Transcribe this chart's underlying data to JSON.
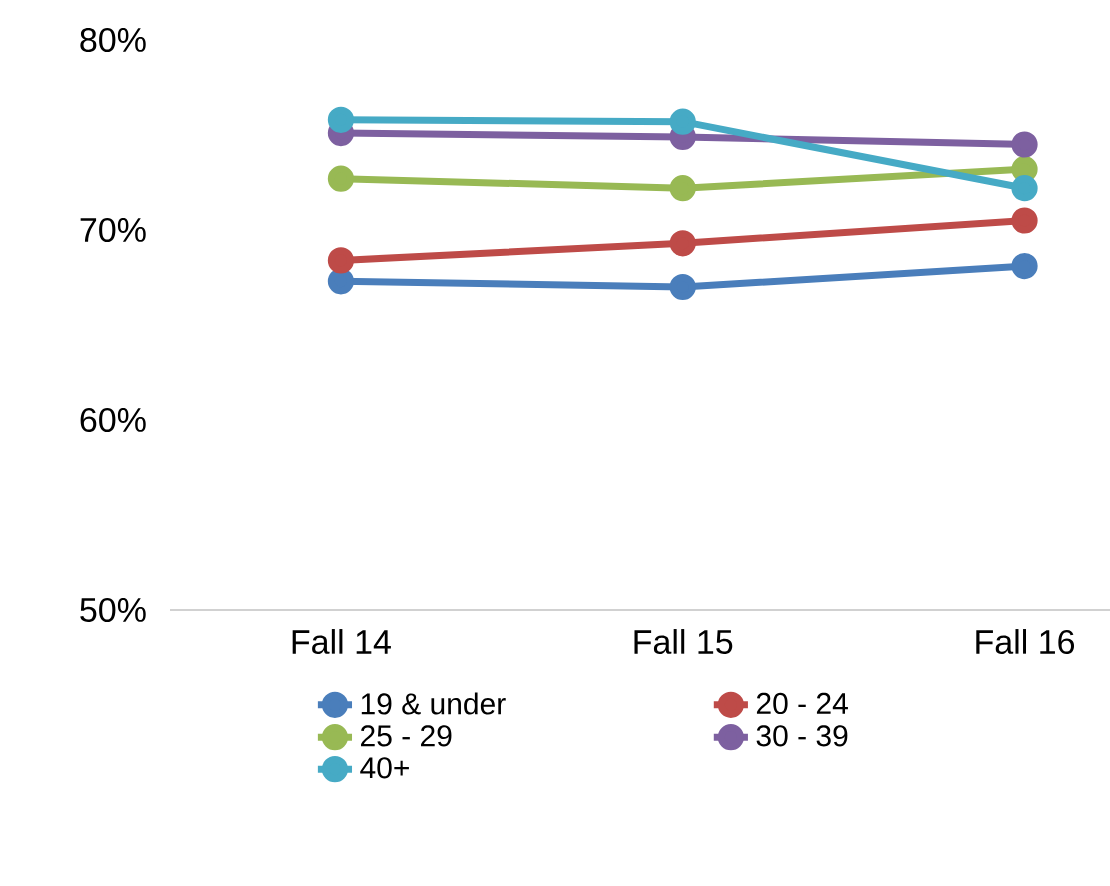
{
  "chart_data": {
    "type": "line",
    "categories": [
      "Fall 14",
      "Fall 15",
      "Fall 16"
    ],
    "series": [
      {
        "name": "19 & under",
        "color": "#4a7ebb",
        "values": [
          67.3,
          67.0,
          68.1
        ]
      },
      {
        "name": "20 - 24",
        "color": "#be4b48",
        "values": [
          68.4,
          69.3,
          70.5
        ]
      },
      {
        "name": "25 - 29",
        "color": "#98b954",
        "values": [
          72.7,
          72.2,
          73.2
        ]
      },
      {
        "name": "30 - 39",
        "color": "#7d60a0",
        "values": [
          75.1,
          74.9,
          74.5
        ]
      },
      {
        "name": "40+",
        "color": "#46aac5",
        "values": [
          75.8,
          75.7,
          72.2
        ]
      }
    ],
    "ylim": [
      50,
      80
    ],
    "yticks": [
      {
        "value": 50,
        "label": "50%"
      },
      {
        "value": 60,
        "label": "60%"
      },
      {
        "value": 70,
        "label": "70%"
      },
      {
        "value": 80,
        "label": "80%"
      }
    ],
    "grid": false,
    "legend": "bottom",
    "marker": "circle",
    "line_style": "solid"
  }
}
